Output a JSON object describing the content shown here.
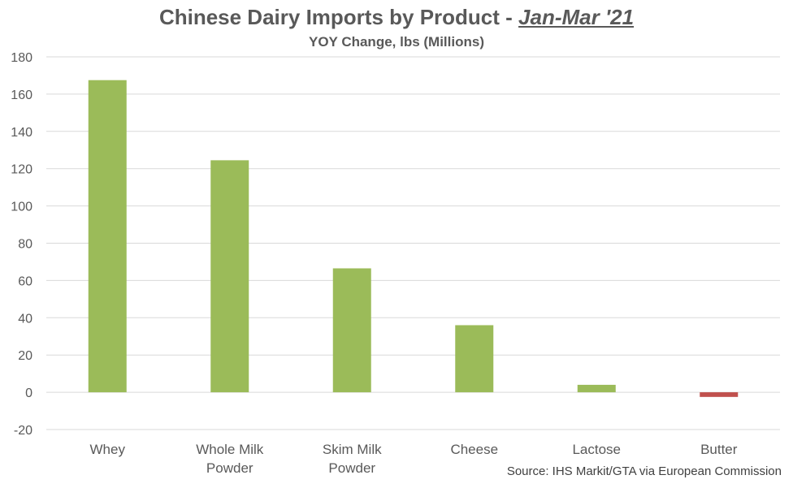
{
  "title": {
    "main": "Chinese Dairy Imports by Product - ",
    "emphasis": "Jan-Mar '21"
  },
  "subtitle": "YOY Change, lbs (Millions)",
  "source": "Source: IHS Markit/GTA via European Commission",
  "chart_data": {
    "type": "bar",
    "categories": [
      "Whey",
      "Whole Milk Powder",
      "Skim Milk Powder",
      "Cheese",
      "Lactose",
      "Butter"
    ],
    "category_lines": [
      [
        "Whey"
      ],
      [
        "Whole Milk",
        "Powder"
      ],
      [
        "Skim Milk",
        "Powder"
      ],
      [
        "Cheese"
      ],
      [
        "Lactose"
      ],
      [
        "Butter"
      ]
    ],
    "values": [
      167.5,
      124.5,
      66.5,
      36,
      4,
      -2.5
    ],
    "ylim": [
      -20,
      180
    ],
    "yticks": [
      180,
      160,
      140,
      120,
      100,
      80,
      60,
      40,
      20,
      0,
      -20
    ],
    "grid": true,
    "colors": {
      "positive": "#9BBB59",
      "negative": "#C0504D",
      "grid": "#D9D9D9"
    }
  }
}
